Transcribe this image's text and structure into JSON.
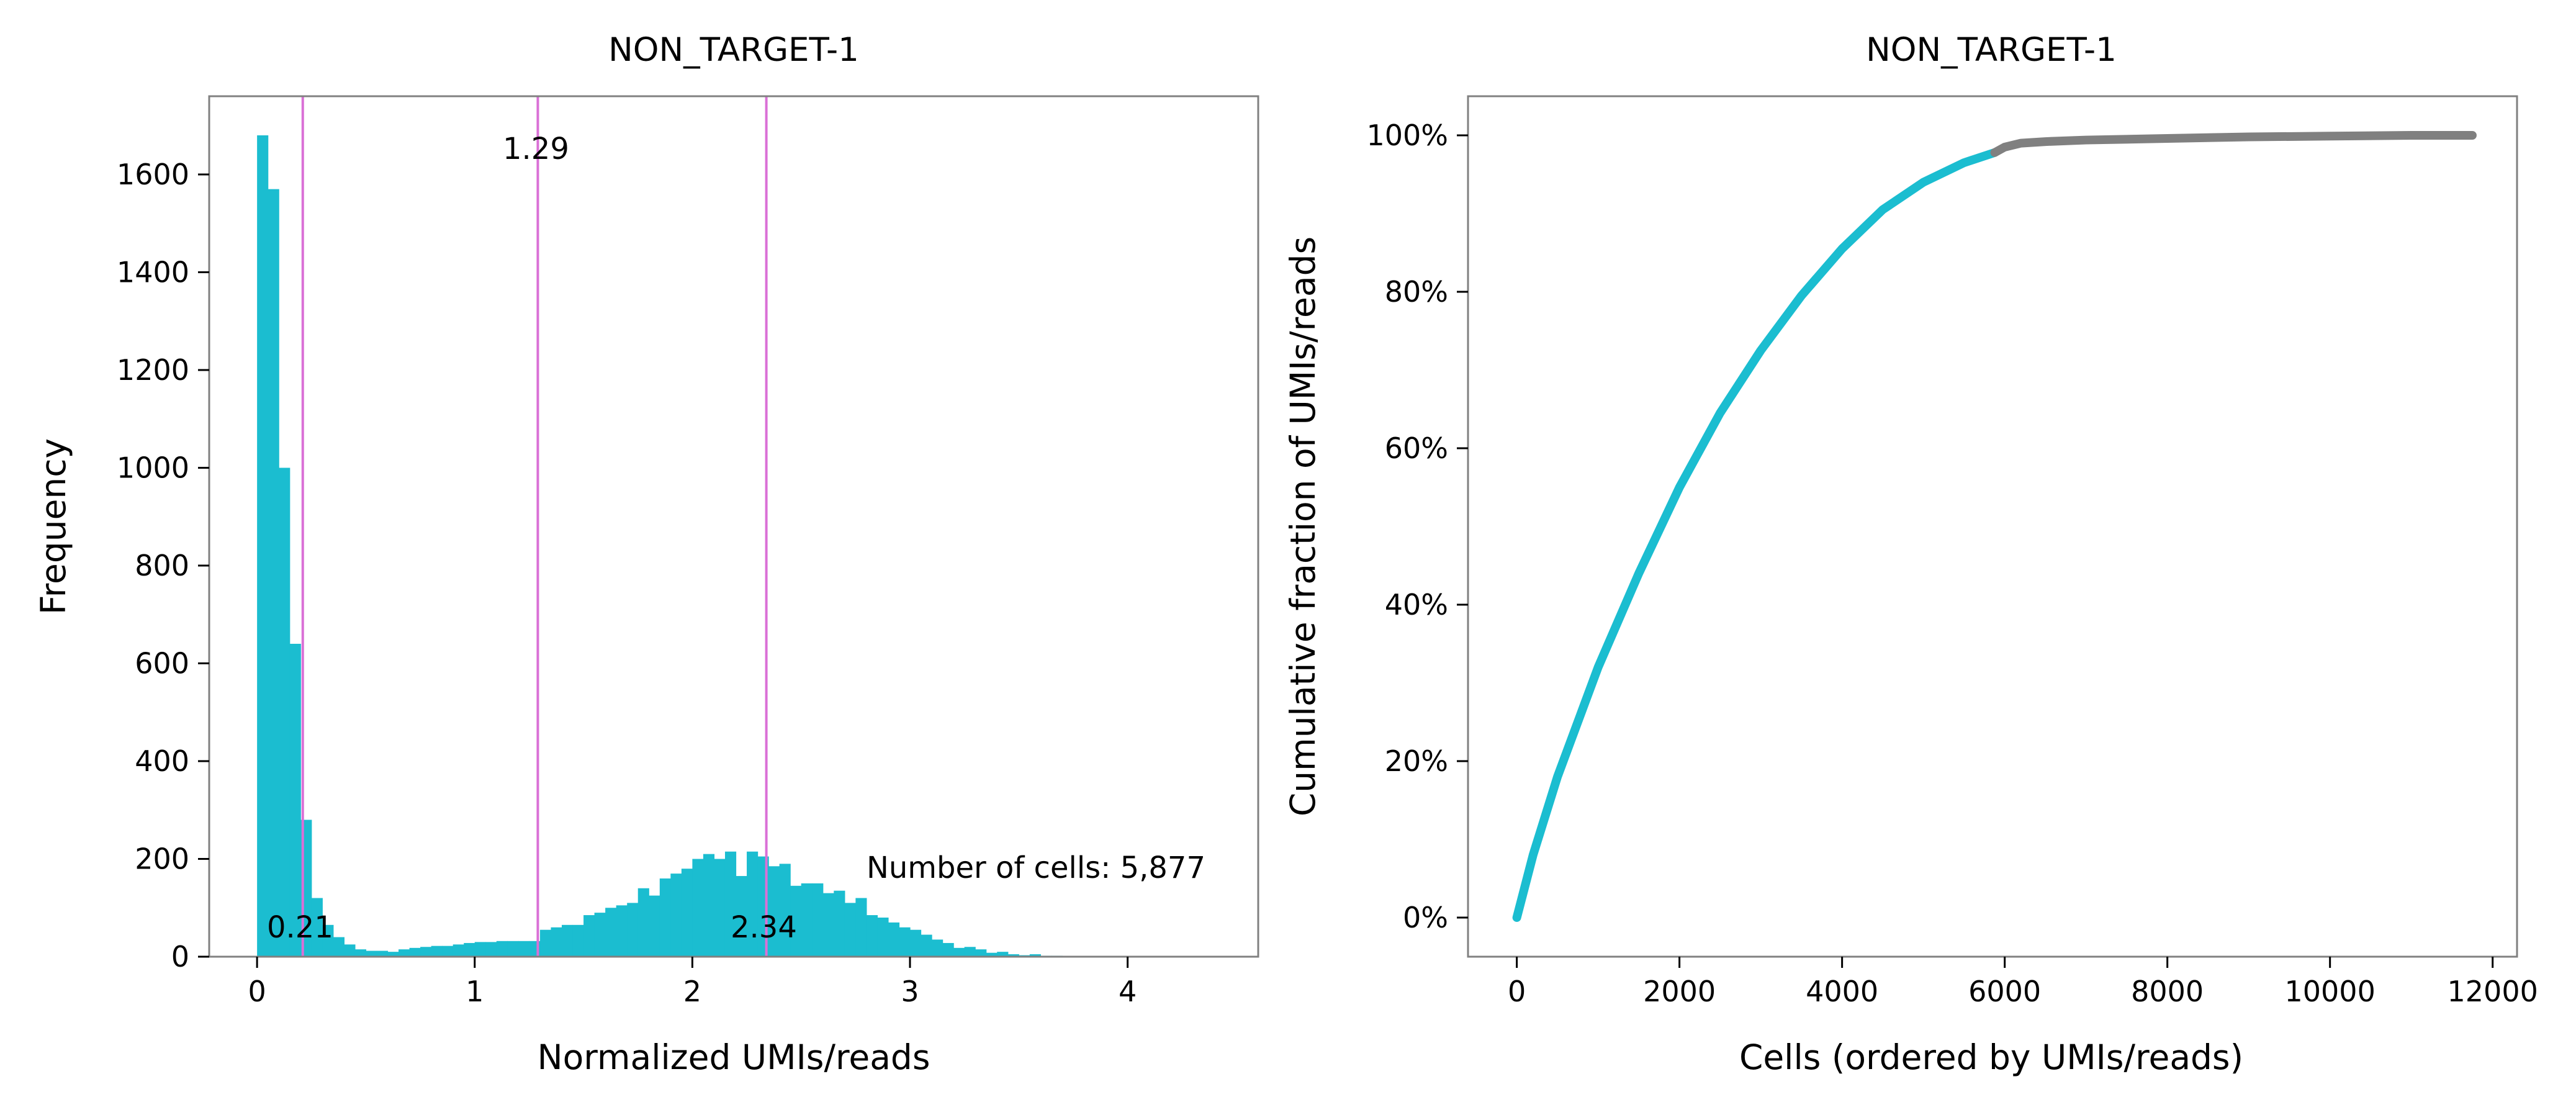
{
  "colors": {
    "bars": "#1BBDD0",
    "vline": "#DA70D6",
    "curve_main": "#1BBDD0",
    "curve_tail": "#808080",
    "frame": "#808080"
  },
  "chart_data": [
    {
      "type": "bar",
      "title": "NON_TARGET-1",
      "xlabel": "Normalized UMIs/reads",
      "ylabel": "Frequency",
      "xlim": [
        -0.22,
        4.6
      ],
      "ylim": [
        0,
        1760
      ],
      "xticks": [
        0,
        1,
        2,
        3,
        4
      ],
      "yticks": [
        0,
        200,
        400,
        600,
        800,
        1000,
        1200,
        1400,
        1600
      ],
      "bin_width": 0.05,
      "bin_start": 0,
      "values": [
        1680,
        1570,
        1000,
        640,
        280,
        120,
        65,
        40,
        25,
        15,
        12,
        12,
        10,
        15,
        18,
        20,
        22,
        22,
        25,
        28,
        30,
        30,
        32,
        32,
        32,
        32,
        55,
        60,
        65,
        65,
        85,
        90,
        100,
        105,
        110,
        140,
        125,
        160,
        170,
        180,
        200,
        210,
        200,
        215,
        165,
        215,
        205,
        185,
        190,
        145,
        150,
        150,
        130,
        135,
        110,
        120,
        85,
        80,
        70,
        60,
        55,
        45,
        35,
        28,
        18,
        20,
        15,
        8,
        10,
        5,
        3,
        5,
        2,
        2,
        1,
        1
      ],
      "vlines": [
        0.21,
        1.29,
        2.34
      ],
      "annotations": {
        "v_low": "0.21",
        "v_mid": "1.29",
        "v_high": "2.34",
        "cells": "Number of cells: 5,877"
      }
    },
    {
      "type": "line",
      "title": "NON_TARGET-1",
      "xlabel": "Cells (ordered by UMIs/reads)",
      "ylabel": "Cumulative fraction of UMIs/reads",
      "xlim": [
        -600,
        12300
      ],
      "ylim": [
        -0.05,
        1.05
      ],
      "xticks": [
        0,
        2000,
        4000,
        6000,
        8000,
        10000,
        12000
      ],
      "yticks": [
        0,
        0.2,
        0.4,
        0.6,
        0.8,
        1.0
      ],
      "ytick_labels": [
        "0%",
        "20%",
        "40%",
        "60%",
        "80%",
        "100%"
      ],
      "series": [
        {
          "x": [
            0,
            200,
            500,
            1000,
            1500,
            2000,
            2500,
            3000,
            3500,
            4000,
            4500,
            5000,
            5500,
            5877
          ],
          "y": [
            0,
            0.08,
            0.18,
            0.32,
            0.44,
            0.55,
            0.645,
            0.725,
            0.795,
            0.855,
            0.905,
            0.94,
            0.965,
            0.978
          ]
        },
        {
          "x": [
            5877,
            6000,
            6200,
            6500,
            7000,
            8000,
            9000,
            10000,
            11000,
            11750
          ],
          "y": [
            0.978,
            0.985,
            0.99,
            0.992,
            0.994,
            0.996,
            0.998,
            0.999,
            1.0,
            1.0
          ]
        }
      ]
    }
  ]
}
